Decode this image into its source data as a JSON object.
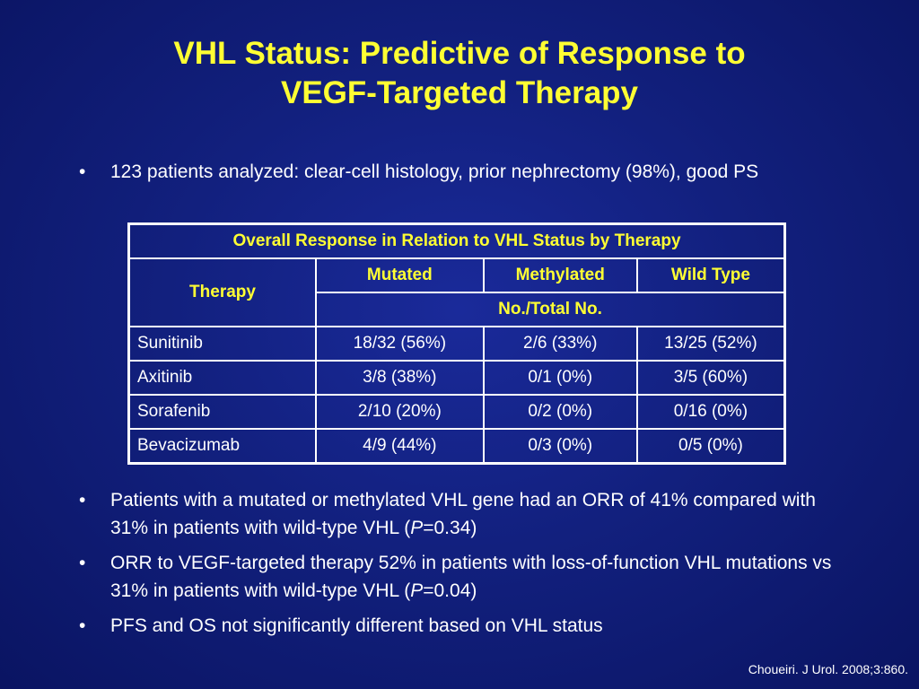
{
  "title": {
    "line1": "VHL Status: Predictive of Response to",
    "line2": "VEGF-Targeted Therapy"
  },
  "bullet_symbol": "•",
  "bullets_top": [
    {
      "text": "123 patients analyzed: clear-cell histology, prior nephrectomy (98%), good PS"
    }
  ],
  "table": {
    "caption": "Overall Response in Relation to VHL Status by Therapy",
    "therapy_header": "Therapy",
    "columns": [
      "Mutated",
      "Methylated",
      "Wild Type"
    ],
    "subheader": "No./Total No.",
    "rows": [
      {
        "therapy": "Sunitinib",
        "mutated": "18/32 (56%)",
        "methylated": "2/6 (33%)",
        "wild_type": "13/25 (52%)"
      },
      {
        "therapy": "Axitinib",
        "mutated": "3/8 (38%)",
        "methylated": "0/1 (0%)",
        "wild_type": "3/5 (60%)"
      },
      {
        "therapy": "Sorafenib",
        "mutated": "2/10 (20%)",
        "methylated": "0/2 (0%)",
        "wild_type": "0/16 (0%)"
      },
      {
        "therapy": "Bevacizumab",
        "mutated": "4/9 (44%)",
        "methylated": "0/3 (0%)",
        "wild_type": "0/5 (0%)"
      }
    ]
  },
  "bullets_bottom": [
    {
      "before": "Patients with a mutated or methylated VHL gene had an ORR of 41% compared with 31% in patients with wild-type VHL (",
      "italic": "P",
      "after": "=0.34)"
    },
    {
      "before": "ORR to VEGF-targeted therapy 52% in patients with loss-of-function VHL mutations vs 31% in patients with wild-type VHL (",
      "italic": "P",
      "after": "=0.04)"
    },
    {
      "before": "PFS and OS not significantly different based on VHL status",
      "italic": "",
      "after": ""
    }
  ],
  "citation": "Choueiri. J Urol. 2008;3:860.",
  "colors": {
    "title": "#ffff33",
    "header_text": "#ffff33",
    "body_text": "#ffffff",
    "background": "#12207e"
  }
}
